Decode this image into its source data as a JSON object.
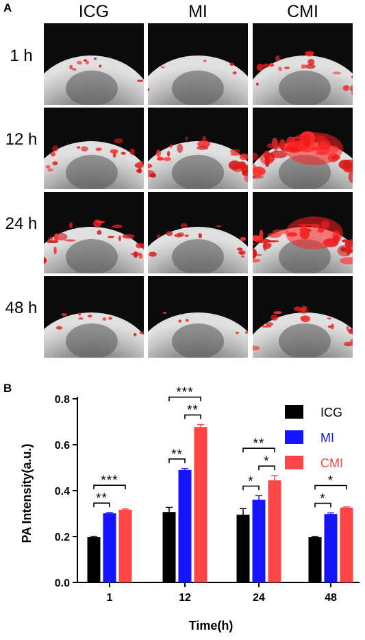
{
  "panel_a": {
    "letter": "A",
    "columns": [
      "ICG",
      "MI",
      "CMI"
    ],
    "rows": [
      "1 h",
      "12 h",
      "24 h",
      "48 h"
    ]
  },
  "panel_b": {
    "letter": "B"
  },
  "chart_data": {
    "type": "bar",
    "ylabel": "PA Intensity(a.u.)",
    "xlabel": "Time(h)",
    "ylim": [
      0,
      0.8
    ],
    "yticks": [
      "0.0",
      "0.2",
      "0.4",
      "0.6",
      "0.8"
    ],
    "categories": [
      "1",
      "12",
      "24",
      "48"
    ],
    "series": [
      {
        "name": "ICG",
        "color": "#000000",
        "values": [
          0.197,
          0.307,
          0.295,
          0.197
        ],
        "errors": [
          0.004,
          0.02,
          0.027,
          0.004
        ]
      },
      {
        "name": "MI",
        "color": "#1414ff",
        "values": [
          0.301,
          0.49,
          0.36,
          0.298
        ],
        "errors": [
          0.003,
          0.006,
          0.018,
          0.005
        ]
      },
      {
        "name": "CMI",
        "color": "#ff4545",
        "values": [
          0.317,
          0.677,
          0.445,
          0.326
        ],
        "errors": [
          0.003,
          0.011,
          0.02,
          0.003
        ]
      }
    ],
    "legend_position": "top-right",
    "significance": [
      {
        "category": 0,
        "from": 0,
        "to": 1,
        "label": "**"
      },
      {
        "category": 0,
        "from": 0,
        "to": 2,
        "label": "***"
      },
      {
        "category": 1,
        "from": 0,
        "to": 1,
        "label": "**"
      },
      {
        "category": 1,
        "from": 1,
        "to": 2,
        "label": "**"
      },
      {
        "category": 1,
        "from": 0,
        "to": 2,
        "label": "***"
      },
      {
        "category": 2,
        "from": 0,
        "to": 1,
        "label": "*"
      },
      {
        "category": 2,
        "from": 1,
        "to": 2,
        "label": "*"
      },
      {
        "category": 2,
        "from": 0,
        "to": 2,
        "label": "**"
      },
      {
        "category": 3,
        "from": 0,
        "to": 1,
        "label": "*"
      },
      {
        "category": 3,
        "from": 0,
        "to": 2,
        "label": "*"
      }
    ]
  }
}
